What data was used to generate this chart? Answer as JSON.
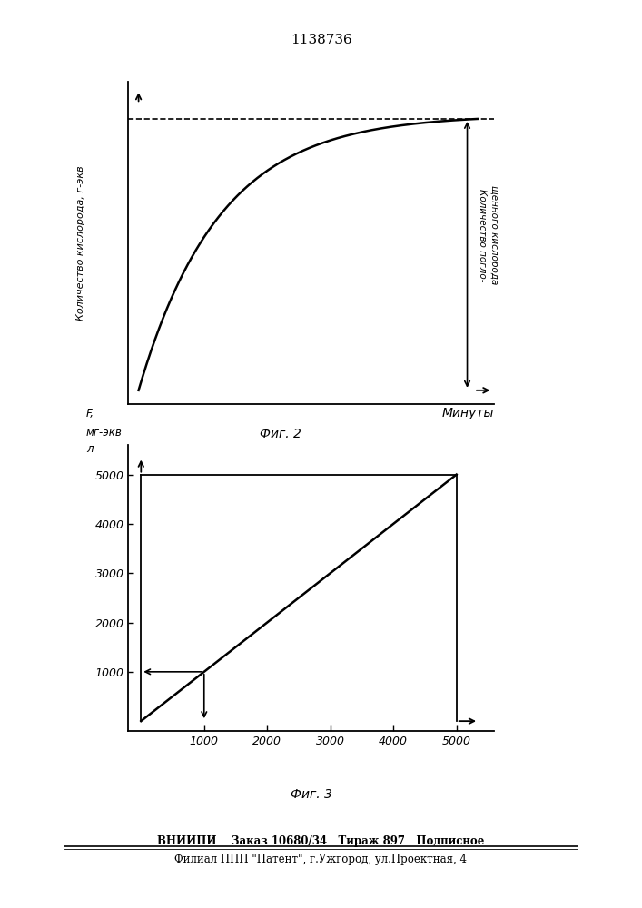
{
  "title": "1138736",
  "fig2_xlabel": "Минуты",
  "fig2_ylabel": "Количество кислорода, г-экв",
  "fig2_right_label_1": "Количество погло-",
  "fig2_right_label_2": "щенного кислорода",
  "fig2_caption": "Фиг. 2",
  "fig3_ylabel_1": "F,",
  "fig3_ylabel_2": "мг-экв",
  "fig3_ylabel_3": "л",
  "fig3_xticks": [
    1000,
    2000,
    3000,
    4000,
    5000
  ],
  "fig3_yticks": [
    1000,
    2000,
    3000,
    4000,
    5000
  ],
  "fig3_caption": "Фиг. 3",
  "footer_line1": "ВНИИПИ    Заказ 10680/34   Тираж 897   Подписное",
  "footer_line2": "Филиал ППП \"Патент\", г.Ужгород, ул.Проектная, 4",
  "line_color": "#000000",
  "dashed_color": "#000000"
}
